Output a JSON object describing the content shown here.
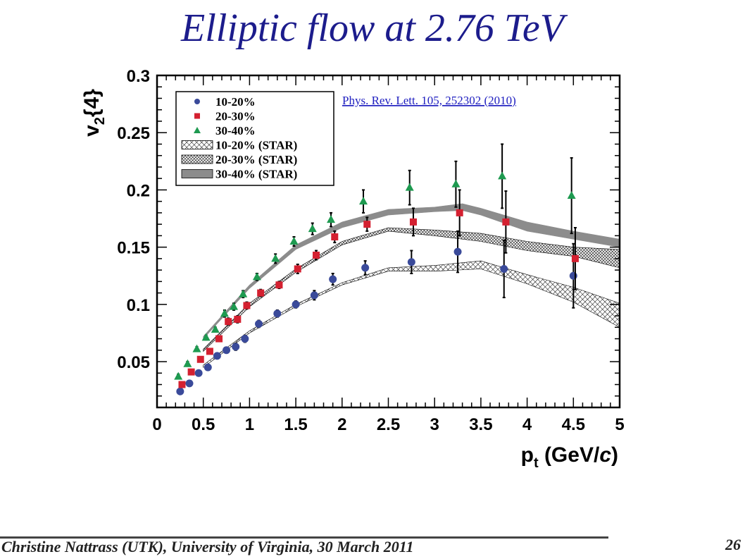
{
  "slide": {
    "title": "Elliptic flow at 2.76 TeV",
    "footer": "Christine Nattrass (UTK), University of Virginia,  30 March 2011",
    "page_number": "26"
  },
  "chart_data": {
    "type": "scatter",
    "title": "",
    "ylabel_main": "v",
    "ylabel_sub": "2",
    "ylabel_tail": "{4}",
    "xlabel_main": "p",
    "xlabel_sub": "t",
    "xlabel_tail": " (GeV/",
    "xlabel_italic": "c",
    "xlabel_end": ")",
    "xlim": [
      0,
      5
    ],
    "ylim": [
      0.01,
      0.3
    ],
    "xticks": [
      0,
      0.5,
      1,
      1.5,
      2,
      2.5,
      3,
      3.5,
      4,
      4.5,
      5
    ],
    "xtick_labels": [
      "0",
      "0.5",
      "1",
      "1.5",
      "2",
      "2.5",
      "3",
      "3.5",
      "4",
      "4.5",
      "5"
    ],
    "yticks": [
      0.05,
      0.1,
      0.15,
      0.2,
      0.25,
      0.3
    ],
    "ytick_labels": [
      "0.05",
      "0.1",
      "0.15",
      "0.2",
      "0.25",
      "0.3"
    ],
    "reference": "Phys. Rev. Lett. 105, 252302 (2010)",
    "legend_position": "top-left",
    "series": [
      {
        "name": "10-20%",
        "marker": "circle",
        "color": "#3a4a9a",
        "points": [
          [
            0.25,
            0.024,
            0.002
          ],
          [
            0.35,
            0.031,
            0.002
          ],
          [
            0.45,
            0.04,
            0.002
          ],
          [
            0.55,
            0.045,
            0.002
          ],
          [
            0.65,
            0.055,
            0.002
          ],
          [
            0.75,
            0.06,
            0.002
          ],
          [
            0.85,
            0.063,
            0.003
          ],
          [
            0.95,
            0.07,
            0.003
          ],
          [
            1.1,
            0.083,
            0.003
          ],
          [
            1.3,
            0.092,
            0.003
          ],
          [
            1.5,
            0.1,
            0.003
          ],
          [
            1.7,
            0.108,
            0.004
          ],
          [
            1.9,
            0.122,
            0.005
          ],
          [
            2.25,
            0.132,
            0.006
          ],
          [
            2.75,
            0.137,
            0.01
          ],
          [
            3.25,
            0.146,
            0.018
          ],
          [
            3.75,
            0.131,
            0.025
          ],
          [
            4.5,
            0.125,
            0.028
          ]
        ]
      },
      {
        "name": "20-30%",
        "marker": "square",
        "color": "#d42030",
        "points": [
          [
            0.27,
            0.03,
            0.002
          ],
          [
            0.37,
            0.041,
            0.002
          ],
          [
            0.47,
            0.052,
            0.002
          ],
          [
            0.57,
            0.059,
            0.002
          ],
          [
            0.67,
            0.07,
            0.002
          ],
          [
            0.77,
            0.085,
            0.003
          ],
          [
            0.87,
            0.087,
            0.003
          ],
          [
            0.97,
            0.099,
            0.003
          ],
          [
            1.12,
            0.11,
            0.003
          ],
          [
            1.32,
            0.117,
            0.003
          ],
          [
            1.52,
            0.131,
            0.004
          ],
          [
            1.72,
            0.143,
            0.004
          ],
          [
            1.92,
            0.159,
            0.005
          ],
          [
            2.27,
            0.17,
            0.006
          ],
          [
            2.77,
            0.172,
            0.012
          ],
          [
            3.27,
            0.18,
            0.02
          ],
          [
            3.77,
            0.172,
            0.027
          ],
          [
            4.52,
            0.14,
            0.027
          ]
        ]
      },
      {
        "name": "30-40%",
        "marker": "triangle",
        "color": "#1e9a50",
        "points": [
          [
            0.23,
            0.037,
            0.002
          ],
          [
            0.33,
            0.048,
            0.002
          ],
          [
            0.43,
            0.061,
            0.002
          ],
          [
            0.53,
            0.071,
            0.002
          ],
          [
            0.63,
            0.078,
            0.002
          ],
          [
            0.73,
            0.092,
            0.003
          ],
          [
            0.83,
            0.098,
            0.003
          ],
          [
            0.93,
            0.109,
            0.003
          ],
          [
            1.08,
            0.124,
            0.003
          ],
          [
            1.28,
            0.14,
            0.004
          ],
          [
            1.48,
            0.155,
            0.004
          ],
          [
            1.68,
            0.166,
            0.005
          ],
          [
            1.88,
            0.174,
            0.006
          ],
          [
            2.23,
            0.19,
            0.01
          ],
          [
            2.73,
            0.202,
            0.015
          ],
          [
            3.23,
            0.205,
            0.02
          ],
          [
            3.73,
            0.212,
            0.028
          ],
          [
            4.48,
            0.195,
            0.033
          ]
        ]
      }
    ],
    "bands": [
      {
        "name": "10-20% (STAR)",
        "style": "crosshatch",
        "x": [
          0.5,
          1.0,
          1.5,
          2.0,
          2.5,
          3.0,
          3.5,
          4.0,
          4.5,
          5.0
        ],
        "lower": [
          0.045,
          0.075,
          0.098,
          0.117,
          0.129,
          0.129,
          0.131,
          0.118,
          0.102,
          0.08
        ],
        "upper": [
          0.047,
          0.077,
          0.1,
          0.119,
          0.132,
          0.134,
          0.138,
          0.126,
          0.115,
          0.101
        ]
      },
      {
        "name": "20-30% (STAR)",
        "style": "dense-hatch",
        "x": [
          0.5,
          1.0,
          1.5,
          2.0,
          2.5,
          3.0,
          3.5,
          4.0,
          4.5,
          5.0
        ],
        "lower": [
          0.059,
          0.098,
          0.128,
          0.152,
          0.164,
          0.16,
          0.155,
          0.147,
          0.142,
          0.132
        ],
        "upper": [
          0.061,
          0.101,
          0.131,
          0.155,
          0.167,
          0.165,
          0.162,
          0.155,
          0.15,
          0.148
        ]
      },
      {
        "name": "30-40% (STAR)",
        "style": "gray",
        "x": [
          0.5,
          1.0,
          1.5,
          2.0,
          2.5,
          3.0,
          3.3,
          3.5,
          4.0,
          4.5,
          5.0
        ],
        "lower": [
          0.07,
          0.114,
          0.148,
          0.167,
          0.178,
          0.181,
          0.182,
          0.178,
          0.164,
          0.157,
          0.15
        ],
        "upper": [
          0.072,
          0.117,
          0.152,
          0.172,
          0.183,
          0.185,
          0.188,
          0.184,
          0.172,
          0.164,
          0.157
        ]
      }
    ],
    "colors": {
      "axis": "#000000",
      "hatch": "#000000",
      "gray_band": "#8c8c8c"
    }
  }
}
